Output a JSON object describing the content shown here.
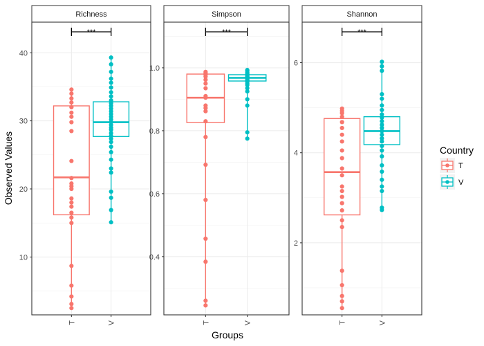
{
  "chart_data": {
    "type": "box",
    "xlabel": "Groups",
    "ylabel": "Observed Values",
    "legend": {
      "title": "Country",
      "position": "right",
      "entries": [
        "T",
        "V"
      ]
    },
    "colors": {
      "T": "#F8766D",
      "V": "#00BFC4"
    },
    "significance_label": "***",
    "grid": true,
    "categories": [
      "T",
      "V"
    ],
    "panels": [
      {
        "name": "Richness",
        "ylim": [
          1.5,
          44.5
        ],
        "yticks": [
          10,
          20,
          30,
          40
        ],
        "boxes": [
          {
            "group": "T",
            "q1": 16.2,
            "median": 21.7,
            "q3": 32.2,
            "lower": 2.5,
            "upper": 34.6,
            "points": [
              2.5,
              3.1,
              4.2,
              5.8,
              8.7,
              15.0,
              15.8,
              16.5,
              17.4,
              18.0,
              18.6,
              20.0,
              20.4,
              20.8,
              21.6,
              24.1,
              28.5,
              29.8,
              30.6,
              31.2,
              32.0,
              32.7,
              33.3,
              34.0,
              34.6
            ]
          },
          {
            "group": "V",
            "q1": 27.7,
            "median": 29.8,
            "q3": 32.8,
            "lower": 15.1,
            "upper": 39.3,
            "points": [
              15.1,
              16.9,
              18.7,
              19.6,
              22.4,
              23.0,
              24.3,
              25.4,
              26.2,
              26.9,
              27.4,
              27.8,
              28.2,
              28.7,
              29.0,
              29.4,
              29.8,
              30.2,
              30.6,
              31.0,
              31.4,
              31.8,
              32.2,
              32.6,
              33.0,
              33.6,
              34.2,
              34.9,
              35.6,
              36.2,
              37.2,
              38.3,
              39.3
            ]
          }
        ]
      },
      {
        "name": "Simpson",
        "ylim": [
          0.215,
          1.145
        ],
        "yticks": [
          0.4,
          0.6,
          0.8,
          1.0
        ],
        "boxes": [
          {
            "group": "T",
            "q1": 0.826,
            "median": 0.905,
            "q3": 0.98,
            "lower": 0.245,
            "upper": 0.987,
            "points": [
              0.245,
              0.26,
              0.384,
              0.457,
              0.58,
              0.692,
              0.78,
              0.83,
              0.862,
              0.872,
              0.88,
              0.905,
              0.91,
              0.935,
              0.95,
              0.962,
              0.972,
              0.978,
              0.983,
              0.987
            ]
          },
          {
            "group": "V",
            "q1": 0.958,
            "median": 0.968,
            "q3": 0.978,
            "lower": 0.775,
            "upper": 0.993,
            "points": [
              0.775,
              0.795,
              0.88,
              0.9,
              0.925,
              0.935,
              0.945,
              0.95,
              0.955,
              0.958,
              0.96,
              0.962,
              0.965,
              0.968,
              0.97,
              0.972,
              0.974,
              0.976,
              0.978,
              0.98,
              0.983,
              0.986,
              0.99,
              0.993
            ]
          }
        ]
      },
      {
        "name": "Shannon",
        "ylim": [
          0.4,
          6.9
        ],
        "yticks": [
          2,
          4,
          6
        ],
        "boxes": [
          {
            "group": "T",
            "q1": 2.62,
            "median": 3.57,
            "q3": 4.76,
            "lower": 0.55,
            "upper": 4.98,
            "points": [
              0.55,
              0.7,
              0.82,
              1.06,
              1.38,
              2.35,
              2.5,
              2.72,
              2.88,
              3.02,
              3.15,
              3.25,
              3.5,
              3.65,
              3.88,
              4.05,
              4.25,
              4.4,
              4.55,
              4.68,
              4.8,
              4.88,
              4.93,
              4.98
            ]
          },
          {
            "group": "V",
            "q1": 4.18,
            "median": 4.48,
            "q3": 4.8,
            "lower": 2.73,
            "upper": 6.02,
            "points": [
              2.73,
              2.78,
              3.15,
              3.25,
              3.4,
              3.58,
              3.72,
              3.92,
              4.05,
              4.15,
              4.25,
              4.32,
              4.4,
              4.48,
              4.55,
              4.62,
              4.7,
              4.78,
              4.85,
              4.95,
              5.05,
              5.2,
              5.3,
              5.82,
              5.92,
              6.02
            ]
          }
        ]
      }
    ]
  }
}
